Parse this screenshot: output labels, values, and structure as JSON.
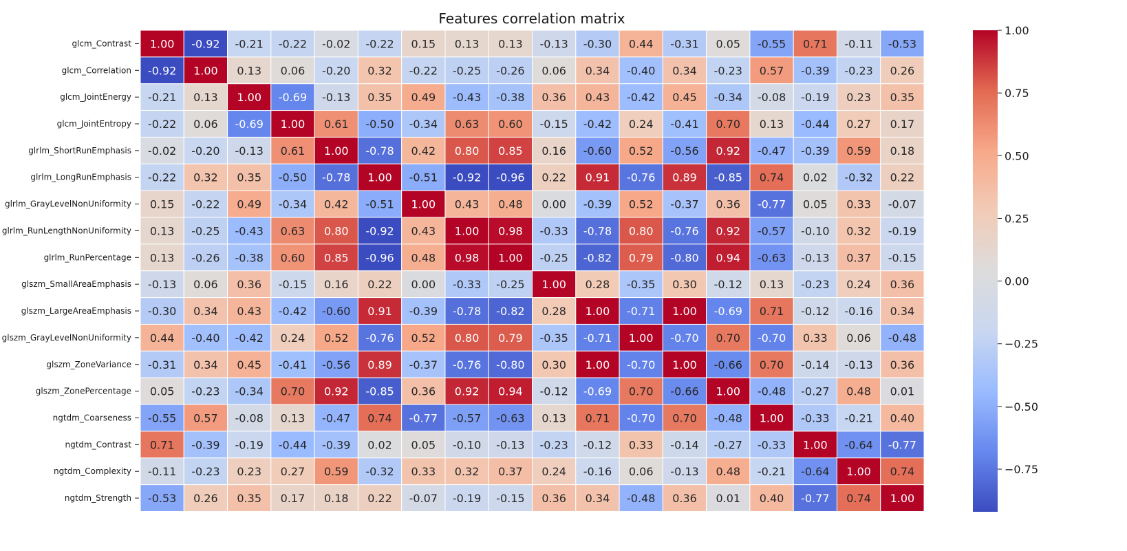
{
  "chart_data": {
    "type": "heatmap",
    "title": "Features correlation matrix",
    "row_labels": [
      "glcm_Contrast",
      "glcm_Correlation",
      "glcm_JointEnergy",
      "glcm_JointEntropy",
      "glrlm_ShortRunEmphasis",
      "glrlm_LongRunEmphasis",
      "glrlm_GrayLevelNonUniformity",
      "glrlm_RunLengthNonUniformity",
      "glrlm_RunPercentage",
      "glszm_SmallAreaEmphasis",
      "glszm_LargeAreaEmphasis",
      "glszm_GrayLevelNonUniformity",
      "glszm_ZoneVariance",
      "glszm_ZonePercentage",
      "ngtdm_Coarseness",
      "ngtdm_Contrast",
      "ngtdm_Complexity",
      "ngtdm_Strength"
    ],
    "values": [
      [
        1.0,
        -0.92,
        -0.21,
        -0.22,
        -0.02,
        -0.22,
        0.15,
        0.13,
        0.13,
        -0.13,
        -0.3,
        0.44,
        -0.31,
        0.05,
        -0.55,
        0.71,
        -0.11,
        -0.53
      ],
      [
        -0.92,
        1.0,
        0.13,
        0.06,
        -0.2,
        0.32,
        -0.22,
        -0.25,
        -0.26,
        0.06,
        0.34,
        -0.4,
        0.34,
        -0.23,
        0.57,
        -0.39,
        -0.23,
        0.26
      ],
      [
        -0.21,
        0.13,
        1.0,
        -0.69,
        -0.13,
        0.35,
        0.49,
        -0.43,
        -0.38,
        0.36,
        0.43,
        -0.42,
        0.45,
        -0.34,
        -0.08,
        -0.19,
        0.23,
        0.35
      ],
      [
        -0.22,
        0.06,
        -0.69,
        1.0,
        0.61,
        -0.5,
        -0.34,
        0.63,
        0.6,
        -0.15,
        -0.42,
        0.24,
        -0.41,
        0.7,
        0.13,
        -0.44,
        0.27,
        0.17
      ],
      [
        -0.02,
        -0.2,
        -0.13,
        0.61,
        1.0,
        -0.78,
        0.42,
        0.8,
        0.85,
        0.16,
        -0.6,
        0.52,
        -0.56,
        0.92,
        -0.47,
        -0.39,
        0.59,
        0.18
      ],
      [
        -0.22,
        0.32,
        0.35,
        -0.5,
        -0.78,
        1.0,
        -0.51,
        -0.92,
        -0.96,
        0.22,
        0.91,
        -0.76,
        0.89,
        -0.85,
        0.74,
        0.02,
        -0.32,
        0.22
      ],
      [
        0.15,
        -0.22,
        0.49,
        -0.34,
        0.42,
        -0.51,
        1.0,
        0.43,
        0.48,
        0.0,
        -0.39,
        0.52,
        -0.37,
        0.36,
        -0.77,
        0.05,
        0.33,
        -0.07
      ],
      [
        0.13,
        -0.25,
        -0.43,
        0.63,
        0.8,
        -0.92,
        0.43,
        1.0,
        0.98,
        -0.33,
        -0.78,
        0.8,
        -0.76,
        0.92,
        -0.57,
        -0.1,
        0.32,
        -0.19
      ],
      [
        0.13,
        -0.26,
        -0.38,
        0.6,
        0.85,
        -0.96,
        0.48,
        0.98,
        1.0,
        -0.25,
        -0.82,
        0.79,
        -0.8,
        0.94,
        -0.63,
        -0.13,
        0.37,
        -0.15
      ],
      [
        -0.13,
        0.06,
        0.36,
        -0.15,
        0.16,
        0.22,
        0.0,
        -0.33,
        -0.25,
        1.0,
        0.28,
        -0.35,
        0.3,
        -0.12,
        0.13,
        -0.23,
        0.24,
        0.36
      ],
      [
        -0.3,
        0.34,
        0.43,
        -0.42,
        -0.6,
        0.91,
        -0.39,
        -0.78,
        -0.82,
        0.28,
        1.0,
        -0.71,
        1.0,
        -0.69,
        0.71,
        -0.12,
        -0.16,
        0.34
      ],
      [
        0.44,
        -0.4,
        -0.42,
        0.24,
        0.52,
        -0.76,
        0.52,
        0.8,
        0.79,
        -0.35,
        -0.71,
        1.0,
        -0.7,
        0.7,
        -0.7,
        0.33,
        0.06,
        -0.48
      ],
      [
        -0.31,
        0.34,
        0.45,
        -0.41,
        -0.56,
        0.89,
        -0.37,
        -0.76,
        -0.8,
        0.3,
        1.0,
        -0.7,
        1.0,
        -0.66,
        0.7,
        -0.14,
        -0.13,
        0.36
      ],
      [
        0.05,
        -0.23,
        -0.34,
        0.7,
        0.92,
        -0.85,
        0.36,
        0.92,
        0.94,
        -0.12,
        -0.69,
        0.7,
        -0.66,
        1.0,
        -0.48,
        -0.27,
        0.48,
        0.01
      ],
      [
        -0.55,
        0.57,
        -0.08,
        0.13,
        -0.47,
        0.74,
        -0.77,
        -0.57,
        -0.63,
        0.13,
        0.71,
        -0.7,
        0.7,
        -0.48,
        1.0,
        -0.33,
        -0.21,
        0.4
      ],
      [
        0.71,
        -0.39,
        -0.19,
        -0.44,
        -0.39,
        0.02,
        0.05,
        -0.1,
        -0.13,
        -0.23,
        -0.12,
        0.33,
        -0.14,
        -0.27,
        -0.33,
        1.0,
        -0.64,
        -0.77
      ],
      [
        -0.11,
        -0.23,
        0.23,
        0.27,
        0.59,
        -0.32,
        0.33,
        0.32,
        0.37,
        0.24,
        -0.16,
        0.06,
        -0.13,
        0.48,
        -0.21,
        -0.64,
        1.0,
        0.74
      ],
      [
        -0.53,
        0.26,
        0.35,
        0.17,
        0.18,
        0.22,
        -0.07,
        -0.19,
        -0.15,
        0.36,
        0.34,
        -0.48,
        0.36,
        0.01,
        0.4,
        -0.77,
        0.74,
        1.0
      ]
    ],
    "colormap": "coolwarm",
    "colormap_stops": [
      "#3b4cc0",
      "#6788ee",
      "#9abbff",
      "#c9d7f0",
      "#dddcdc",
      "#f2cbb7",
      "#f7a889",
      "#e26952",
      "#b40426"
    ],
    "vmin": -0.92,
    "vmax": 1.0,
    "colorbar": {
      "ticks": [
        1.0,
        0.75,
        0.5,
        0.25,
        0.0,
        -0.25,
        -0.5,
        -0.75
      ],
      "tick_labels": [
        "1.00",
        "0.75",
        "0.50",
        "0.25",
        "0.00",
        "−0.25",
        "−0.50",
        "−0.75"
      ],
      "position": "right"
    },
    "annotation_format": "0.00",
    "grid": false
  }
}
